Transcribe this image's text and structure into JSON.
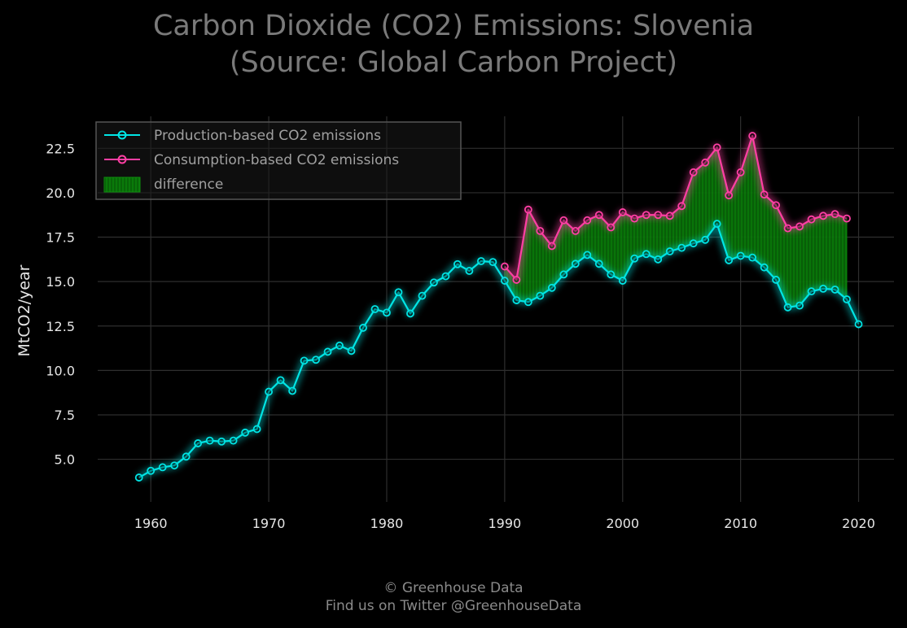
{
  "chart_data": {
    "type": "line",
    "title": "Carbon Dioxide (CO2) Emissions: Slovenia",
    "subtitle": "(Source: Global Carbon Project)",
    "xlabel": "",
    "ylabel": "MtCO2/year",
    "xlim": [
      1955.5,
      2023
    ],
    "ylim": [
      2.6,
      24.3
    ],
    "xticks": [
      1960,
      1970,
      1980,
      1990,
      2000,
      2010,
      2020
    ],
    "yticks": [
      5.0,
      7.5,
      10.0,
      12.5,
      15.0,
      17.5,
      20.0,
      22.5
    ],
    "xtick_labels": [
      "1960",
      "1970",
      "1980",
      "1990",
      "2000",
      "2010",
      "2020"
    ],
    "ytick_labels": [
      "5.0",
      "7.5",
      "10.0",
      "12.5",
      "15.0",
      "17.5",
      "20.0",
      "22.5"
    ],
    "grid": true,
    "legend_position": "top-left",
    "series": [
      {
        "name": "Production-based CO2 emissions",
        "color": "#00e5e5",
        "x": [
          1959,
          1960,
          1961,
          1962,
          1963,
          1964,
          1965,
          1966,
          1967,
          1968,
          1969,
          1970,
          1971,
          1972,
          1973,
          1974,
          1975,
          1976,
          1977,
          1978,
          1979,
          1980,
          1981,
          1982,
          1983,
          1984,
          1985,
          1986,
          1987,
          1988,
          1989,
          1990,
          1991,
          1992,
          1993,
          1994,
          1995,
          1996,
          1997,
          1998,
          1999,
          2000,
          2001,
          2002,
          2003,
          2004,
          2005,
          2006,
          2007,
          2008,
          2009,
          2010,
          2011,
          2012,
          2013,
          2014,
          2015,
          2016,
          2017,
          2018,
          2019,
          2020
        ],
        "values": [
          3.97,
          4.35,
          4.55,
          4.65,
          5.15,
          5.9,
          6.05,
          6.0,
          6.05,
          6.5,
          6.7,
          8.8,
          9.45,
          8.85,
          10.55,
          10.6,
          11.05,
          11.4,
          11.1,
          12.4,
          13.45,
          13.25,
          14.4,
          13.2,
          14.2,
          14.95,
          15.3,
          15.98,
          15.6,
          16.15,
          16.1,
          15.05,
          13.95,
          13.85,
          14.2,
          14.65,
          15.4,
          16.0,
          16.5,
          16.0,
          15.4,
          15.05,
          16.3,
          16.55,
          16.25,
          16.7,
          16.9,
          17.15,
          17.35,
          18.25,
          16.2,
          16.45,
          16.35,
          15.8,
          15.1,
          13.55,
          13.65,
          14.45,
          14.6,
          14.55,
          14.0,
          12.6
        ]
      },
      {
        "name": "Consumption-based CO2 emissions",
        "color": "#ff3fa4",
        "x": [
          1990,
          1991,
          1992,
          1993,
          1994,
          1995,
          1996,
          1997,
          1998,
          1999,
          2000,
          2001,
          2002,
          2003,
          2004,
          2005,
          2006,
          2007,
          2008,
          2009,
          2010,
          2011,
          2012,
          2013,
          2014,
          2015,
          2016,
          2017,
          2018,
          2019
        ],
        "values": [
          15.85,
          15.1,
          19.05,
          17.85,
          17.0,
          18.45,
          17.85,
          18.45,
          18.75,
          18.05,
          18.9,
          18.55,
          18.75,
          18.75,
          18.7,
          19.25,
          21.15,
          21.7,
          22.55,
          19.85,
          21.15,
          23.2,
          19.9,
          19.3,
          18.0,
          18.1,
          18.5,
          18.7,
          18.8,
          18.55
        ]
      }
    ],
    "fill_between": {
      "name": "difference",
      "color": "#0a7a0a",
      "between": [
        "Consumption-based CO2 emissions",
        "Production-based CO2 emissions"
      ]
    }
  },
  "footer": {
    "line1": "© Greenhouse Data",
    "line2": "Find us on Twitter @GreenhouseData"
  }
}
